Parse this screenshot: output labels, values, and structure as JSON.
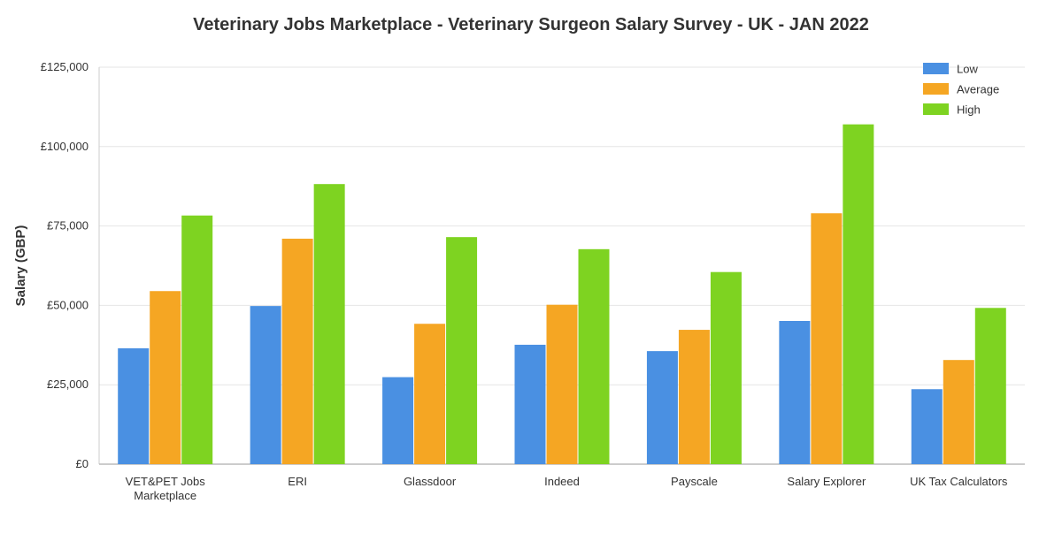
{
  "chart_data": {
    "type": "bar",
    "title": "Veterinary Jobs Marketplace - Veterinary Surgeon Salary Survey - UK - JAN 2022",
    "xlabel": "",
    "ylabel": "Salary (GBP)",
    "ylim": [
      0,
      125000
    ],
    "yticks": [
      {
        "value": 0,
        "label": "£0"
      },
      {
        "value": 25000,
        "label": "£25,000"
      },
      {
        "value": 50000,
        "label": "£50,000"
      },
      {
        "value": 75000,
        "label": "£75,000"
      },
      {
        "value": 100000,
        "label": "£100,000"
      },
      {
        "value": 125000,
        "label": "£125,000"
      }
    ],
    "grid": true,
    "legend_position": "top-right",
    "categories": [
      [
        "VET&PET Jobs",
        "Marketplace"
      ],
      [
        "ERI"
      ],
      [
        "Glassdoor"
      ],
      [
        "Indeed"
      ],
      [
        "Payscale"
      ],
      [
        "Salary Explorer"
      ],
      [
        "UK Tax Calculators"
      ]
    ],
    "series": [
      {
        "name": "Low",
        "color": "#4a90e2",
        "values": [
          36500,
          49800,
          27400,
          37600,
          35600,
          45100,
          23600
        ]
      },
      {
        "name": "Average",
        "color": "#f5a623",
        "values": [
          54500,
          71000,
          44200,
          50200,
          42300,
          79000,
          32800
        ]
      },
      {
        "name": "High",
        "color": "#7ed321",
        "values": [
          78300,
          88200,
          71500,
          67700,
          60500,
          107000,
          49200
        ]
      }
    ]
  }
}
